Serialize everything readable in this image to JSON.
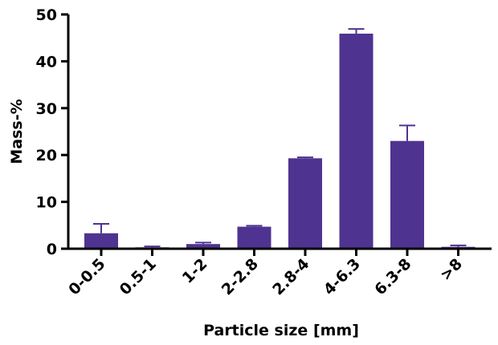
{
  "chart_data": {
    "type": "bar",
    "title": "",
    "xlabel": "Particle size [mm]",
    "ylabel": "Mass-%",
    "ylim": [
      0,
      50
    ],
    "yticks": [
      0,
      10,
      20,
      30,
      40,
      50
    ],
    "categories": [
      "0-0.5",
      "0.5-1",
      "1-2",
      "2-2.8",
      "2.8-4",
      "4-6.3",
      "6.3-8",
      ">8"
    ],
    "values": [
      3.3,
      0.3,
      1.0,
      4.7,
      19.3,
      45.9,
      23.0,
      0.4
    ],
    "errors": [
      2.0,
      0.2,
      0.3,
      0.2,
      0.2,
      1.0,
      3.3,
      0.3
    ],
    "bar_color": "#4f3390",
    "grid": false
  }
}
